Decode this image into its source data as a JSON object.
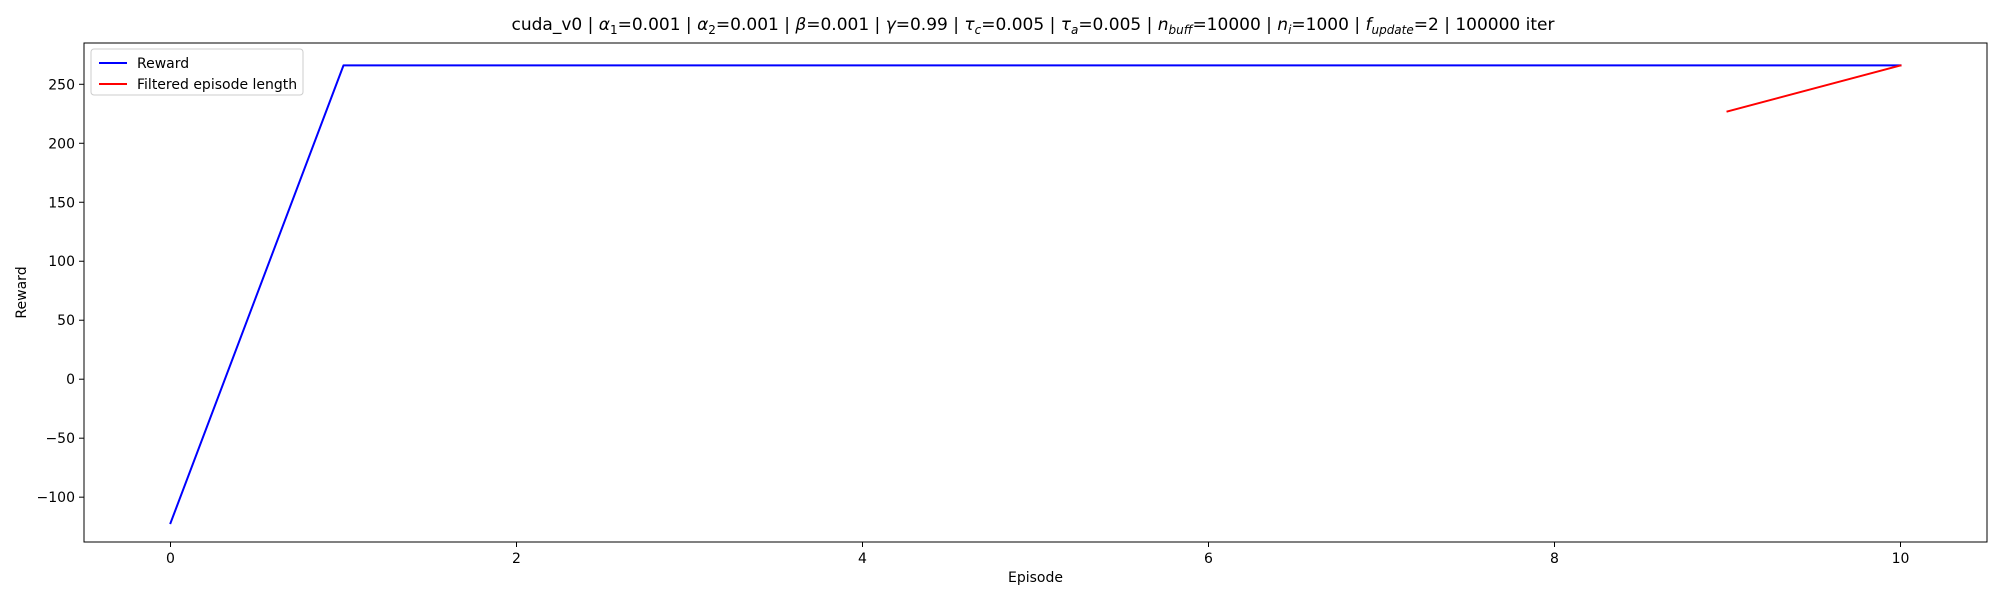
{
  "chart_data": {
    "type": "line",
    "title": {
      "segments": [
        {
          "t": "cuda_v0 | "
        },
        {
          "t": "α",
          "i": true
        },
        {
          "t": "1",
          "sub": true
        },
        {
          "t": "=0.001 | "
        },
        {
          "t": "α",
          "i": true
        },
        {
          "t": "2",
          "sub": true
        },
        {
          "t": "=0.001 | "
        },
        {
          "t": "β",
          "i": true
        },
        {
          "t": "=0.001 | "
        },
        {
          "t": "γ",
          "i": true
        },
        {
          "t": "=0.99 | "
        },
        {
          "t": "τ",
          "i": true
        },
        {
          "t": "c",
          "sub": true,
          "i": true
        },
        {
          "t": "=0.005 | "
        },
        {
          "t": "τ",
          "i": true
        },
        {
          "t": "a",
          "sub": true,
          "i": true
        },
        {
          "t": "=0.005 | "
        },
        {
          "t": "n",
          "i": true
        },
        {
          "t": "buff",
          "sub": true,
          "i": true
        },
        {
          "t": "=10000 | "
        },
        {
          "t": "n",
          "i": true
        },
        {
          "t": "i",
          "sub": true,
          "i": true
        },
        {
          "t": "=1000 | "
        },
        {
          "t": "f",
          "i": true
        },
        {
          "t": "update",
          "sub": true,
          "i": true
        },
        {
          "t": "=2 | 100000 iter"
        }
      ]
    },
    "xlabel": "Episode",
    "ylabel": "Reward",
    "xlim": [
      -0.5,
      10.5
    ],
    "ylim": [
      -138,
      285
    ],
    "xticks": [
      0,
      2,
      4,
      6,
      8,
      10
    ],
    "yticks": [
      -100,
      -50,
      0,
      50,
      100,
      150,
      200,
      250
    ],
    "grid": false,
    "legend_position": "upper-left",
    "series": [
      {
        "name": "Reward",
        "color": "#0000ff",
        "x": [
          0,
          1,
          2,
          3,
          4,
          5,
          6,
          7,
          8,
          9,
          10
        ],
        "y": [
          -122,
          266,
          266,
          266,
          266,
          266,
          266,
          266,
          266,
          266,
          266
        ]
      },
      {
        "name": "Filtered episode length",
        "color": "#ff0000",
        "x": [
          9,
          10
        ],
        "y": [
          227,
          266
        ]
      }
    ]
  }
}
